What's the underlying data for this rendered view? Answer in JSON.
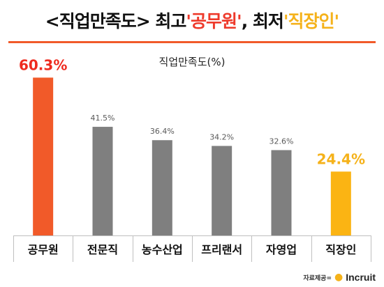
{
  "headline": {
    "part1": "<직업만족도> 최고 ",
    "part2": "'공무원'",
    "part3": ", 최저 ",
    "part4": "'직장인'",
    "part5": ""
  },
  "credit": {
    "source_label": "자료제공=",
    "logo_text": "Incruit"
  },
  "colors": {
    "highest": "#f15a29",
    "lowest": "#fbb413",
    "other": "#7f7f7f",
    "axis": "#bfbfbf",
    "accent_rule": "#f15a29"
  },
  "chart_data": {
    "type": "bar",
    "title": "직업만족도(%)",
    "categories": [
      "공무원",
      "전문직",
      "농수산업",
      "프리랜서",
      "자영업",
      "직장인"
    ],
    "values": [
      60.3,
      41.5,
      36.4,
      34.2,
      32.6,
      24.4
    ],
    "value_labels": [
      "60.3%",
      "41.5%",
      "36.4%",
      "34.2%",
      "32.6%",
      "24.4%"
    ],
    "highlight": {
      "highest_index": 0,
      "lowest_index": 5
    },
    "ylim": [
      0,
      66
    ],
    "grid": false,
    "xlabel": "",
    "ylabel": ""
  }
}
